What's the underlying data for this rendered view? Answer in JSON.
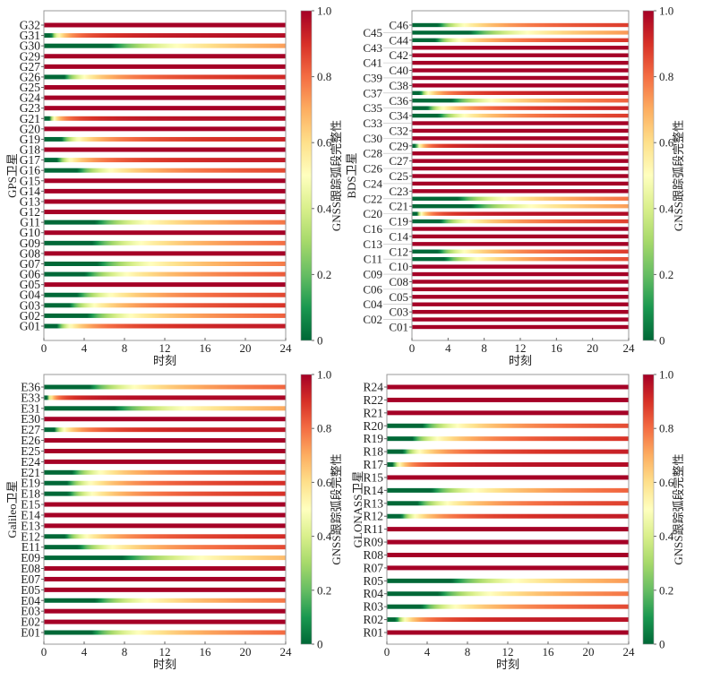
{
  "colorbar": {
    "label": "GNSS跟踪弧段完整性",
    "ticks": [
      "0",
      "0.2",
      "0.4",
      "0.6",
      "0.8",
      "1.0"
    ],
    "range": [
      0,
      1
    ],
    "colormap": "RdYlGn_r"
  },
  "chart_data": [
    {
      "type": "heatmap",
      "xlabel": "时刻",
      "ylabel": "GPS卫星",
      "xlim": [
        0,
        24
      ],
      "xticks": [
        "0",
        "4",
        "8",
        "12",
        "16",
        "20",
        "24"
      ],
      "satellites": [
        {
          "name": "G32",
          "arc_start_hour": 0
        },
        {
          "name": "G31",
          "arc_start_hour": 0.7
        },
        {
          "name": "G30",
          "arc_start_hour": 6.6
        },
        {
          "name": "G29",
          "arc_start_hour": 0
        },
        {
          "name": "G27",
          "arc_start_hour": 0
        },
        {
          "name": "G26",
          "arc_start_hour": 2.0
        },
        {
          "name": "G25",
          "arc_start_hour": 0
        },
        {
          "name": "G24",
          "arc_start_hour": 0
        },
        {
          "name": "G23",
          "arc_start_hour": 0
        },
        {
          "name": "G21",
          "arc_start_hour": 0.5
        },
        {
          "name": "G20",
          "arc_start_hour": 0
        },
        {
          "name": "G19",
          "arc_start_hour": 1.7
        },
        {
          "name": "G18",
          "arc_start_hour": 0
        },
        {
          "name": "G17",
          "arc_start_hour": 1.3
        },
        {
          "name": "G16",
          "arc_start_hour": 3.3
        },
        {
          "name": "G15",
          "arc_start_hour": 0
        },
        {
          "name": "G14",
          "arc_start_hour": 0
        },
        {
          "name": "G13",
          "arc_start_hour": 0
        },
        {
          "name": "G12",
          "arc_start_hour": 0
        },
        {
          "name": "G11",
          "arc_start_hour": 5.1
        },
        {
          "name": "G10",
          "arc_start_hour": 0
        },
        {
          "name": "G09",
          "arc_start_hour": 4.8
        },
        {
          "name": "G08",
          "arc_start_hour": 0
        },
        {
          "name": "G07",
          "arc_start_hour": 5.3
        },
        {
          "name": "G06",
          "arc_start_hour": 4.1
        },
        {
          "name": "G05",
          "arc_start_hour": 0
        },
        {
          "name": "G04",
          "arc_start_hour": 3.3
        },
        {
          "name": "G03",
          "arc_start_hour": 2.5
        },
        {
          "name": "G02",
          "arc_start_hour": 4.3
        },
        {
          "name": "G01",
          "arc_start_hour": 1.3
        }
      ]
    },
    {
      "type": "heatmap",
      "xlabel": "时刻",
      "ylabel": "BDS卫星",
      "xlim": [
        0,
        24
      ],
      "xticks": [
        "0",
        "4",
        "8",
        "12",
        "16",
        "20",
        "24"
      ],
      "satellites": [
        {
          "name": "C46",
          "arc_start_hour": 2.9
        },
        {
          "name": "C45",
          "arc_start_hour": 6.4
        },
        {
          "name": "C44",
          "arc_start_hour": 2.6
        },
        {
          "name": "C43",
          "arc_start_hour": 0
        },
        {
          "name": "C42",
          "arc_start_hour": 0
        },
        {
          "name": "C41",
          "arc_start_hour": 0
        },
        {
          "name": "C40",
          "arc_start_hour": 0
        },
        {
          "name": "C39",
          "arc_start_hour": 0
        },
        {
          "name": "C38",
          "arc_start_hour": 0
        },
        {
          "name": "C37",
          "arc_start_hour": 0.9
        },
        {
          "name": "C36",
          "arc_start_hour": 4.4
        },
        {
          "name": "C35",
          "arc_start_hour": 1.7
        },
        {
          "name": "C34",
          "arc_start_hour": 2.9
        },
        {
          "name": "C33",
          "arc_start_hour": 0
        },
        {
          "name": "C32",
          "arc_start_hour": 0
        },
        {
          "name": "C30",
          "arc_start_hour": 0
        },
        {
          "name": "C29",
          "arc_start_hour": 0.4
        },
        {
          "name": "C28",
          "arc_start_hour": 0
        },
        {
          "name": "C27",
          "arc_start_hour": 0
        },
        {
          "name": "C26",
          "arc_start_hour": 0
        },
        {
          "name": "C25",
          "arc_start_hour": 0
        },
        {
          "name": "C24",
          "arc_start_hour": 0
        },
        {
          "name": "C23",
          "arc_start_hour": 0
        },
        {
          "name": "C22",
          "arc_start_hour": 5.1
        },
        {
          "name": "C21",
          "arc_start_hour": 6.6
        },
        {
          "name": "C20",
          "arc_start_hour": 0.5
        },
        {
          "name": "C19",
          "arc_start_hour": 3.1
        },
        {
          "name": "C16",
          "arc_start_hour": 0
        },
        {
          "name": "C14",
          "arc_start_hour": 0
        },
        {
          "name": "C13",
          "arc_start_hour": 0
        },
        {
          "name": "C12",
          "arc_start_hour": 2.9
        },
        {
          "name": "C11",
          "arc_start_hour": 3.6
        },
        {
          "name": "C10",
          "arc_start_hour": 0
        },
        {
          "name": "C09",
          "arc_start_hour": 0
        },
        {
          "name": "C08",
          "arc_start_hour": 0
        },
        {
          "name": "C06",
          "arc_start_hour": 0
        },
        {
          "name": "C05",
          "arc_start_hour": 0
        },
        {
          "name": "C04",
          "arc_start_hour": 0
        },
        {
          "name": "C03",
          "arc_start_hour": 0
        },
        {
          "name": "C02",
          "arc_start_hour": 0
        },
        {
          "name": "C01",
          "arc_start_hour": 0
        }
      ]
    },
    {
      "type": "heatmap",
      "xlabel": "时刻",
      "ylabel": "Galileo卫星",
      "xlim": [
        0,
        24
      ],
      "xticks": [
        "0",
        "4",
        "8",
        "12",
        "16",
        "20",
        "24"
      ],
      "satellites": [
        {
          "name": "E36",
          "arc_start_hour": 4.5
        },
        {
          "name": "E33",
          "arc_start_hour": 0.3
        },
        {
          "name": "E31",
          "arc_start_hour": 7.0
        },
        {
          "name": "E30",
          "arc_start_hour": 0
        },
        {
          "name": "E27",
          "arc_start_hour": 1.0
        },
        {
          "name": "E26",
          "arc_start_hour": 0
        },
        {
          "name": "E25",
          "arc_start_hour": 0
        },
        {
          "name": "E24",
          "arc_start_hour": 0
        },
        {
          "name": "E21",
          "arc_start_hour": 2.8
        },
        {
          "name": "E19",
          "arc_start_hour": 2.3
        },
        {
          "name": "E18",
          "arc_start_hour": 2.4
        },
        {
          "name": "E15",
          "arc_start_hour": 0
        },
        {
          "name": "E14",
          "arc_start_hour": 0
        },
        {
          "name": "E13",
          "arc_start_hour": 0
        },
        {
          "name": "E12",
          "arc_start_hour": 2.1
        },
        {
          "name": "E11",
          "arc_start_hour": 3.4
        },
        {
          "name": "E09",
          "arc_start_hour": 7.8
        },
        {
          "name": "E08",
          "arc_start_hour": 0
        },
        {
          "name": "E07",
          "arc_start_hour": 0
        },
        {
          "name": "E05",
          "arc_start_hour": 0
        },
        {
          "name": "E04",
          "arc_start_hour": 5.1
        },
        {
          "name": "E03",
          "arc_start_hour": 0
        },
        {
          "name": "E02",
          "arc_start_hour": 0
        },
        {
          "name": "E01",
          "arc_start_hour": 4.7
        }
      ]
    },
    {
      "type": "heatmap",
      "xlabel": "时刻",
      "ylabel": "GLONASS卫星",
      "xlim": [
        0,
        24
      ],
      "xticks": [
        "0",
        "4",
        "8",
        "12",
        "16",
        "20",
        "24"
      ],
      "satellites": [
        {
          "name": "R24",
          "arc_start_hour": 0
        },
        {
          "name": "R22",
          "arc_start_hour": 0
        },
        {
          "name": "R21",
          "arc_start_hour": 0
        },
        {
          "name": "R20",
          "arc_start_hour": 3.5
        },
        {
          "name": "R19",
          "arc_start_hour": 2.5
        },
        {
          "name": "R18",
          "arc_start_hour": 1.6
        },
        {
          "name": "R17",
          "arc_start_hour": 0.6
        },
        {
          "name": "R15",
          "arc_start_hour": 0
        },
        {
          "name": "R14",
          "arc_start_hour": 4.4
        },
        {
          "name": "R13",
          "arc_start_hour": 3.0
        },
        {
          "name": "R12",
          "arc_start_hour": 1.4
        },
        {
          "name": "R11",
          "arc_start_hour": 0
        },
        {
          "name": "R09",
          "arc_start_hour": 0
        },
        {
          "name": "R08",
          "arc_start_hour": 0
        },
        {
          "name": "R07",
          "arc_start_hour": 0
        },
        {
          "name": "R05",
          "arc_start_hour": 6.4
        },
        {
          "name": "R04",
          "arc_start_hour": 5.1
        },
        {
          "name": "R03",
          "arc_start_hour": 3.4
        },
        {
          "name": "R02",
          "arc_start_hour": 0.9
        },
        {
          "name": "R01",
          "arc_start_hour": 0
        }
      ]
    }
  ]
}
